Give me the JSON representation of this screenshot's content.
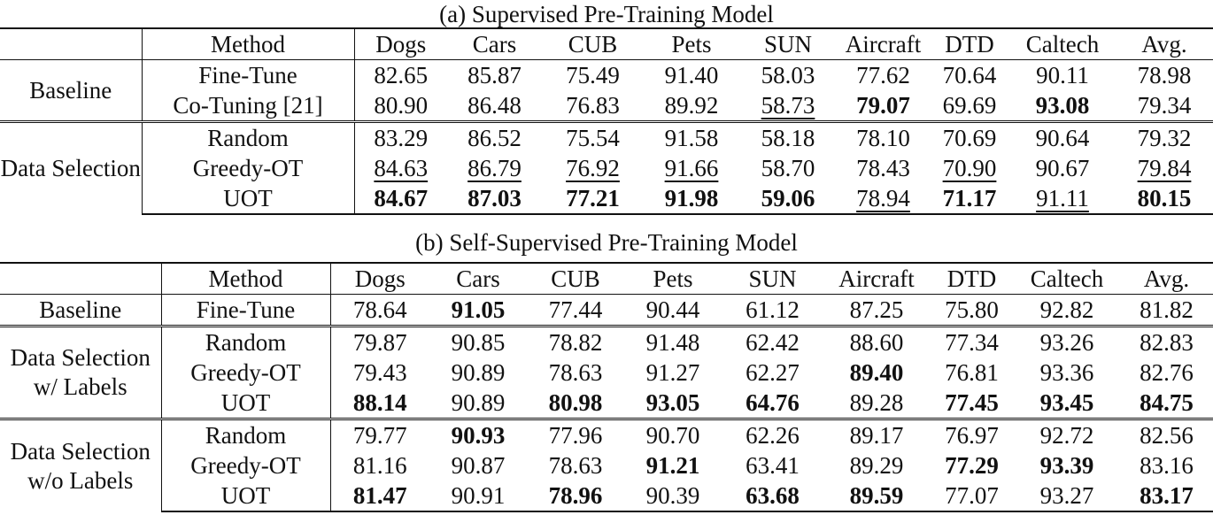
{
  "tables": [
    {
      "caption": "(a) Supervised Pre-Training Model",
      "headers": [
        "",
        "Method",
        "Dogs",
        "Cars",
        "CUB",
        "Pets",
        "SUN",
        "Aircraft",
        "DTD",
        "Caltech",
        "Avg."
      ],
      "groups": [
        {
          "label": "Baseline",
          "rows": [
            {
              "method": "Fine-Tune",
              "cells": [
                {
                  "v": "82.65",
                  "s": ""
                },
                {
                  "v": "85.87",
                  "s": ""
                },
                {
                  "v": "75.49",
                  "s": ""
                },
                {
                  "v": "91.40",
                  "s": ""
                },
                {
                  "v": "58.03",
                  "s": ""
                },
                {
                  "v": "77.62",
                  "s": ""
                },
                {
                  "v": "70.64",
                  "s": ""
                },
                {
                  "v": "90.11",
                  "s": ""
                },
                {
                  "v": "78.98",
                  "s": ""
                }
              ]
            },
            {
              "method": "Co-Tuning [21]",
              "cells": [
                {
                  "v": "80.90",
                  "s": ""
                },
                {
                  "v": "86.48",
                  "s": ""
                },
                {
                  "v": "76.83",
                  "s": ""
                },
                {
                  "v": "89.92",
                  "s": ""
                },
                {
                  "v": "58.73",
                  "s": "underline"
                },
                {
                  "v": "79.07",
                  "s": "bold"
                },
                {
                  "v": "69.69",
                  "s": ""
                },
                {
                  "v": "93.08",
                  "s": "bold"
                },
                {
                  "v": "79.34",
                  "s": ""
                }
              ]
            }
          ]
        },
        {
          "label": "Data Selection",
          "rows": [
            {
              "method": "Random",
              "cells": [
                {
                  "v": "83.29",
                  "s": ""
                },
                {
                  "v": "86.52",
                  "s": ""
                },
                {
                  "v": "75.54",
                  "s": ""
                },
                {
                  "v": "91.58",
                  "s": ""
                },
                {
                  "v": "58.18",
                  "s": ""
                },
                {
                  "v": "78.10",
                  "s": ""
                },
                {
                  "v": "70.69",
                  "s": ""
                },
                {
                  "v": "90.64",
                  "s": ""
                },
                {
                  "v": "79.32",
                  "s": ""
                }
              ]
            },
            {
              "method": "Greedy-OT",
              "cells": [
                {
                  "v": "84.63",
                  "s": "underline"
                },
                {
                  "v": "86.79",
                  "s": "underline"
                },
                {
                  "v": "76.92",
                  "s": "underline"
                },
                {
                  "v": "91.66",
                  "s": "underline"
                },
                {
                  "v": "58.70",
                  "s": ""
                },
                {
                  "v": "78.43",
                  "s": ""
                },
                {
                  "v": "70.90",
                  "s": "underline"
                },
                {
                  "v": "90.67",
                  "s": ""
                },
                {
                  "v": "79.84",
                  "s": "underline"
                }
              ]
            },
            {
              "method": "UOT",
              "cells": [
                {
                  "v": "84.67",
                  "s": "bold"
                },
                {
                  "v": "87.03",
                  "s": "bold"
                },
                {
                  "v": "77.21",
                  "s": "bold"
                },
                {
                  "v": "91.98",
                  "s": "bold"
                },
                {
                  "v": "59.06",
                  "s": "bold"
                },
                {
                  "v": "78.94",
                  "s": "underline"
                },
                {
                  "v": "71.17",
                  "s": "bold"
                },
                {
                  "v": "91.11",
                  "s": "underline"
                },
                {
                  "v": "80.15",
                  "s": "bold"
                }
              ]
            }
          ]
        }
      ]
    },
    {
      "caption": "(b) Self-Supervised Pre-Training Model",
      "headers": [
        "",
        "Method",
        "Dogs",
        "Cars",
        "CUB",
        "Pets",
        "SUN",
        "Aircraft",
        "DTD",
        "Caltech",
        "Avg."
      ],
      "groups": [
        {
          "label": "Baseline",
          "rows": [
            {
              "method": "Fine-Tune",
              "cells": [
                {
                  "v": "78.64",
                  "s": ""
                },
                {
                  "v": "91.05",
                  "s": "bold"
                },
                {
                  "v": "77.44",
                  "s": ""
                },
                {
                  "v": "90.44",
                  "s": ""
                },
                {
                  "v": "61.12",
                  "s": ""
                },
                {
                  "v": "87.25",
                  "s": ""
                },
                {
                  "v": "75.80",
                  "s": ""
                },
                {
                  "v": "92.82",
                  "s": ""
                },
                {
                  "v": "81.82",
                  "s": ""
                }
              ]
            }
          ]
        },
        {
          "label": "Data Selection w/ Labels",
          "rows": [
            {
              "method": "Random",
              "cells": [
                {
                  "v": "79.87",
                  "s": ""
                },
                {
                  "v": "90.85",
                  "s": ""
                },
                {
                  "v": "78.82",
                  "s": ""
                },
                {
                  "v": "91.48",
                  "s": ""
                },
                {
                  "v": "62.42",
                  "s": ""
                },
                {
                  "v": "88.60",
                  "s": ""
                },
                {
                  "v": "77.34",
                  "s": ""
                },
                {
                  "v": "93.26",
                  "s": ""
                },
                {
                  "v": "82.83",
                  "s": ""
                }
              ]
            },
            {
              "method": "Greedy-OT",
              "cells": [
                {
                  "v": "79.43",
                  "s": ""
                },
                {
                  "v": "90.89",
                  "s": ""
                },
                {
                  "v": "78.63",
                  "s": ""
                },
                {
                  "v": "91.27",
                  "s": ""
                },
                {
                  "v": "62.27",
                  "s": ""
                },
                {
                  "v": "89.40",
                  "s": "bold"
                },
                {
                  "v": "76.81",
                  "s": ""
                },
                {
                  "v": "93.36",
                  "s": ""
                },
                {
                  "v": "82.76",
                  "s": ""
                }
              ]
            },
            {
              "method": "UOT",
              "cells": [
                {
                  "v": "88.14",
                  "s": "bold"
                },
                {
                  "v": "90.89",
                  "s": ""
                },
                {
                  "v": "80.98",
                  "s": "bold"
                },
                {
                  "v": "93.05",
                  "s": "bold"
                },
                {
                  "v": "64.76",
                  "s": "bold"
                },
                {
                  "v": "89.28",
                  "s": ""
                },
                {
                  "v": "77.45",
                  "s": "bold"
                },
                {
                  "v": "93.45",
                  "s": "bold"
                },
                {
                  "v": "84.75",
                  "s": "bold"
                }
              ]
            }
          ]
        },
        {
          "label": "Data Selection w/o Labels",
          "rows": [
            {
              "method": "Random",
              "cells": [
                {
                  "v": "79.77",
                  "s": ""
                },
                {
                  "v": "90.93",
                  "s": "bold"
                },
                {
                  "v": "77.96",
                  "s": ""
                },
                {
                  "v": "90.70",
                  "s": ""
                },
                {
                  "v": "62.26",
                  "s": ""
                },
                {
                  "v": "89.17",
                  "s": ""
                },
                {
                  "v": "76.97",
                  "s": ""
                },
                {
                  "v": "92.72",
                  "s": ""
                },
                {
                  "v": "82.56",
                  "s": ""
                }
              ]
            },
            {
              "method": "Greedy-OT",
              "cells": [
                {
                  "v": "81.16",
                  "s": ""
                },
                {
                  "v": "90.87",
                  "s": ""
                },
                {
                  "v": "78.63",
                  "s": ""
                },
                {
                  "v": "91.21",
                  "s": "bold"
                },
                {
                  "v": "63.41",
                  "s": ""
                },
                {
                  "v": "89.29",
                  "s": ""
                },
                {
                  "v": "77.29",
                  "s": "bold"
                },
                {
                  "v": "93.39",
                  "s": "bold"
                },
                {
                  "v": "83.16",
                  "s": ""
                }
              ]
            },
            {
              "method": "UOT",
              "cells": [
                {
                  "v": "81.47",
                  "s": "bold"
                },
                {
                  "v": "90.91",
                  "s": ""
                },
                {
                  "v": "78.96",
                  "s": "bold"
                },
                {
                  "v": "90.39",
                  "s": ""
                },
                {
                  "v": "63.68",
                  "s": "bold"
                },
                {
                  "v": "89.59",
                  "s": "bold"
                },
                {
                  "v": "77.07",
                  "s": ""
                },
                {
                  "v": "93.27",
                  "s": ""
                },
                {
                  "v": "83.17",
                  "s": "bold"
                }
              ]
            }
          ]
        }
      ]
    }
  ]
}
